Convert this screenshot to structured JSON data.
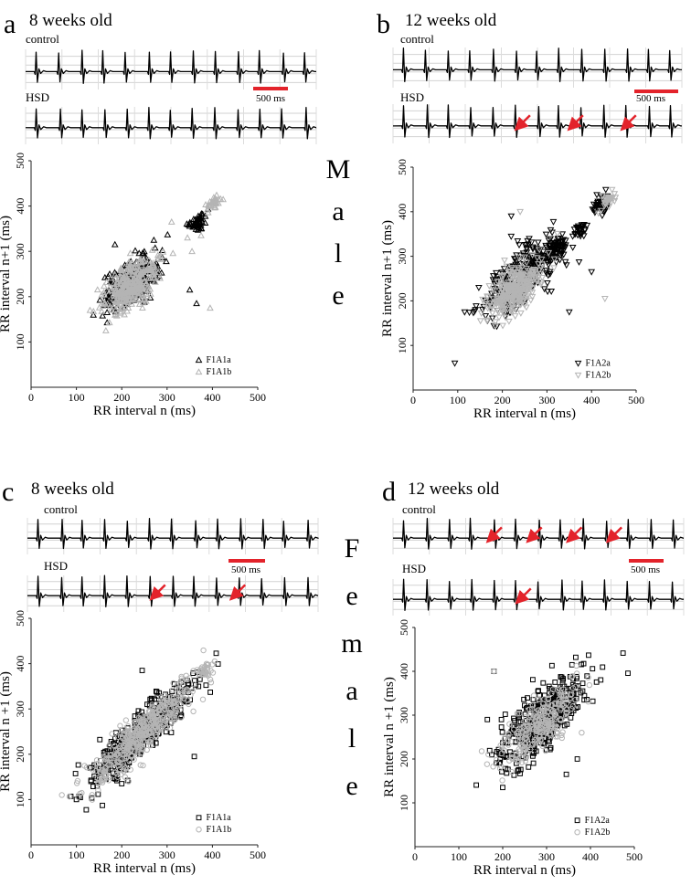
{
  "sex_labels": {
    "male": "Male",
    "female": "Female"
  },
  "panels": [
    {
      "letter": "a",
      "title": "8 weeks old",
      "trace_labels": [
        "control",
        "HSD"
      ],
      "scale_bar": "500 ms",
      "red_arrows": [
        0,
        0
      ],
      "axis": {
        "xlabel": "RR interval n (ms)",
        "ylabel": "RR interval n+1 (ms)",
        "xticks": [
          "0",
          "100",
          "200",
          "300",
          "400",
          "500"
        ],
        "yticks": [
          "100",
          "200",
          "300",
          "400",
          "500"
        ]
      },
      "legend": [
        "F1A1a",
        "F1A1b"
      ]
    },
    {
      "letter": "b",
      "title": "12 weeks old",
      "trace_labels": [
        "control",
        "HSD"
      ],
      "scale_bar": "500 ms",
      "red_arrows": [
        0,
        3
      ],
      "axis": {
        "xlabel": "RR interval n (ms)",
        "ylabel": "RR interval n+1 (ms)",
        "xticks": [
          "0",
          "100",
          "200",
          "300",
          "400",
          "500"
        ],
        "yticks": [
          "100",
          "200",
          "300",
          "400",
          "500"
        ]
      },
      "legend": [
        "F1A2a",
        "F1A2b"
      ]
    },
    {
      "letter": "c",
      "title": "8 weeks old",
      "trace_labels": [
        "control",
        "HSD"
      ],
      "scale_bar": "500 ms",
      "red_arrows": [
        0,
        2
      ],
      "axis": {
        "xlabel": "RR interval n (ms)",
        "ylabel": "RR interval n +1 (ms)",
        "xticks": [
          "0",
          "100",
          "200",
          "300",
          "400",
          "500"
        ],
        "yticks": [
          "100",
          "200",
          "300",
          "400",
          "500"
        ]
      },
      "legend": [
        "F1A1a",
        "F1A1b"
      ]
    },
    {
      "letter": "d",
      "title": "12 weeks old",
      "trace_labels": [
        "control",
        "HSD"
      ],
      "scale_bar": "500 ms",
      "red_arrows": [
        4,
        1
      ],
      "axis": {
        "xlabel": "RR interval n (ms)",
        "ylabel": "RR interval n +1 (ms)",
        "xticks": [
          "0",
          "100",
          "200",
          "300",
          "400",
          "500"
        ],
        "yticks": [
          "100",
          "200",
          "300",
          "400",
          "500"
        ]
      },
      "legend": [
        "F1A2a",
        "F1A2b"
      ]
    }
  ],
  "chart_data": [
    {
      "type": "scatter",
      "panel": "a",
      "xlabel": "RR interval n (ms)",
      "ylabel": "RR interval n+1 (ms)",
      "xlim": [
        0,
        500
      ],
      "ylim": [
        0,
        500
      ],
      "marker": "triangle-up",
      "series": [
        {
          "name": "F1A1a",
          "color": "#000000",
          "clusters": [
            {
              "center": [
                220,
                230
              ],
              "spread": [
                30,
                30
              ],
              "corr": 0.6,
              "n": 260
            },
            {
              "center": [
                370,
                365
              ],
              "spread": [
                10,
                10
              ],
              "corr": 0.3,
              "n": 45
            }
          ],
          "outliers": [
            [
              185,
              315
            ],
            [
              350,
              215
            ],
            [
              365,
              185
            ]
          ]
        },
        {
          "name": "F1A1b",
          "color": "#b4b4b4",
          "clusters": [
            {
              "center": [
                220,
                225
              ],
              "spread": [
                30,
                30
              ],
              "corr": 0.6,
              "n": 320
            },
            {
              "center": [
                405,
                408
              ],
              "spread": [
                8,
                8
              ],
              "corr": 0.5,
              "n": 35
            }
          ],
          "outliers": [
            [
              130,
              170
            ],
            [
              165,
              125
            ],
            [
              375,
              335
            ],
            [
              395,
              175
            ],
            [
              355,
              300
            ],
            [
              345,
              330
            ],
            [
              310,
              365
            ]
          ]
        }
      ]
    },
    {
      "type": "scatter",
      "panel": "b",
      "xlabel": "RR interval n (ms)",
      "ylabel": "RR interval n+1 (ms)",
      "xlim": [
        0,
        500
      ],
      "ylim": [
        0,
        500
      ],
      "marker": "triangle-down",
      "series": [
        {
          "name": "F1A2a",
          "color": "#000000",
          "clusters": [
            {
              "center": [
                240,
                250
              ],
              "spread": [
                45,
                45
              ],
              "corr": 0.75,
              "n": 300
            },
            {
              "center": [
                320,
                320
              ],
              "spread": [
                12,
                12
              ],
              "corr": 0.4,
              "n": 60
            },
            {
              "center": [
                375,
                360
              ],
              "spread": [
                8,
                8
              ],
              "corr": 0.3,
              "n": 30
            },
            {
              "center": [
                420,
                415
              ],
              "spread": [
                10,
                12
              ],
              "corr": 0.3,
              "n": 40
            }
          ],
          "outliers": [
            [
              400,
              265
            ],
            [
              350,
              175
            ],
            [
              220,
              390
            ]
          ]
        },
        {
          "name": "F1A2b",
          "color": "#b4b4b4",
          "clusters": [
            {
              "center": [
                225,
                225
              ],
              "spread": [
                30,
                30
              ],
              "corr": 0.6,
              "n": 320
            },
            {
              "center": [
                435,
                425
              ],
              "spread": [
                8,
                8
              ],
              "corr": 0.4,
              "n": 30
            }
          ],
          "outliers": [
            [
              240,
              400
            ],
            [
              430,
              205
            ],
            [
              285,
              260
            ]
          ]
        }
      ]
    },
    {
      "type": "scatter",
      "panel": "c",
      "xlabel": "RR interval n (ms)",
      "ylabel": "RR interval n +1 (ms)",
      "xlim": [
        0,
        500
      ],
      "ylim": [
        0,
        500
      ],
      "marker": "square",
      "series": [
        {
          "name": "F1A1a",
          "color": "#000000",
          "clusters": [
            {
              "center": [
                240,
                245
              ],
              "spread": [
                55,
                55
              ],
              "corr": 0.9,
              "n": 420
            }
          ],
          "outliers": [
            [
              360,
              195
            ],
            [
              245,
              385
            ],
            [
              200,
              135
            ]
          ]
        },
        {
          "name": "F1A1b",
          "color": "#b4b4b4",
          "marker": "circle",
          "clusters": [
            {
              "center": [
                250,
                250
              ],
              "spread": [
                60,
                60
              ],
              "corr": 0.93,
              "n": 420
            },
            {
              "center": [
                385,
                385
              ],
              "spread": [
                10,
                10
              ],
              "corr": 0.5,
              "n": 25
            }
          ],
          "outliers": [
            [
              215,
              140
            ],
            [
              405,
              405
            ]
          ]
        }
      ]
    },
    {
      "type": "scatter",
      "panel": "d",
      "xlabel": "RR interval n (ms)",
      "ylabel": "RR interval n +1 (ms)",
      "xlim": [
        0,
        500
      ],
      "ylim": [
        0,
        500
      ],
      "marker": "square",
      "series": [
        {
          "name": "F1A2a",
          "color": "#000000",
          "clusters": [
            {
              "center": [
                290,
                290
              ],
              "spread": [
                55,
                55
              ],
              "corr": 0.75,
              "n": 380
            }
          ],
          "outliers": [
            [
              180,
              400
            ],
            [
              165,
              290
            ],
            [
              200,
              135
            ],
            [
              345,
              165
            ],
            [
              370,
              200
            ]
          ]
        },
        {
          "name": "F1A2b",
          "color": "#b4b4b4",
          "marker": "circle",
          "clusters": [
            {
              "center": [
                285,
                280
              ],
              "spread": [
                45,
                45
              ],
              "corr": 0.8,
              "n": 260
            }
          ],
          "outliers": [
            [
              180,
              400
            ],
            [
              380,
              260
            ]
          ]
        }
      ]
    }
  ]
}
